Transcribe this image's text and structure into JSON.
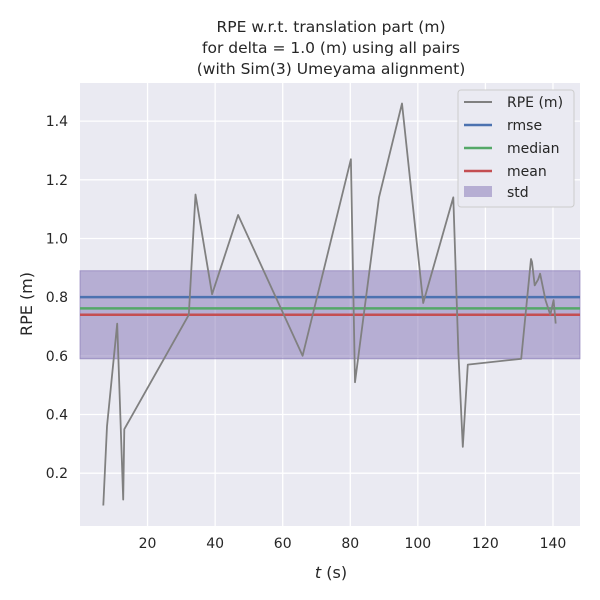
{
  "chart_data": {
    "type": "line",
    "title_lines": [
      "RPE w.r.t. translation part (m)",
      "for delta = 1.0 (m) using all pairs",
      "(with Sim(3) Umeyama alignment)"
    ],
    "xlabel_italic": "t",
    "xlabel_rest": " (s)",
    "ylabel": "RPE (m)",
    "xlim": [
      0,
      148
    ],
    "ylim": [
      0.02,
      1.53
    ],
    "xticks": [
      20,
      40,
      60,
      80,
      100,
      120,
      140
    ],
    "yticks": [
      0.2,
      0.4,
      0.6,
      0.8,
      1.0,
      1.2,
      1.4
    ],
    "ytick_labels": [
      "0.2",
      "0.4",
      "0.6",
      "0.8",
      "1.0",
      "1.2",
      "1.4"
    ],
    "grid": true,
    "legend_position": "top-right",
    "series": [
      {
        "name": "RPE (m)",
        "color": "#808080",
        "x": [
          6.9,
          8.0,
          11.0,
          12.8,
          13.1,
          32.2,
          34.2,
          39.1,
          46.8,
          65.9,
          80.2,
          81.4,
          88.5,
          95.3,
          101.6,
          110.5,
          112.0,
          113.3,
          114.8,
          130.6,
          133.5,
          133.8,
          134.6,
          135.6,
          136.2,
          137.8,
          139.2,
          140.2,
          140.8
        ],
        "y": [
          0.09,
          0.36,
          0.71,
          0.11,
          0.35,
          0.74,
          1.15,
          0.81,
          1.08,
          0.6,
          1.27,
          0.51,
          1.14,
          1.46,
          0.78,
          1.14,
          0.61,
          0.29,
          0.57,
          0.59,
          0.93,
          0.92,
          0.84,
          0.86,
          0.88,
          0.79,
          0.74,
          0.79,
          0.71
        ]
      }
    ],
    "stats": [
      {
        "name": "rmse",
        "color": "#4c72b0",
        "value": 0.8
      },
      {
        "name": "median",
        "color": "#55a868",
        "value": 0.762
      },
      {
        "name": "mean",
        "color": "#c44e52",
        "value": 0.74
      }
    ],
    "std_band": {
      "name": "std",
      "color": "#8172b3",
      "lower": 0.59,
      "upper": 0.89
    }
  }
}
